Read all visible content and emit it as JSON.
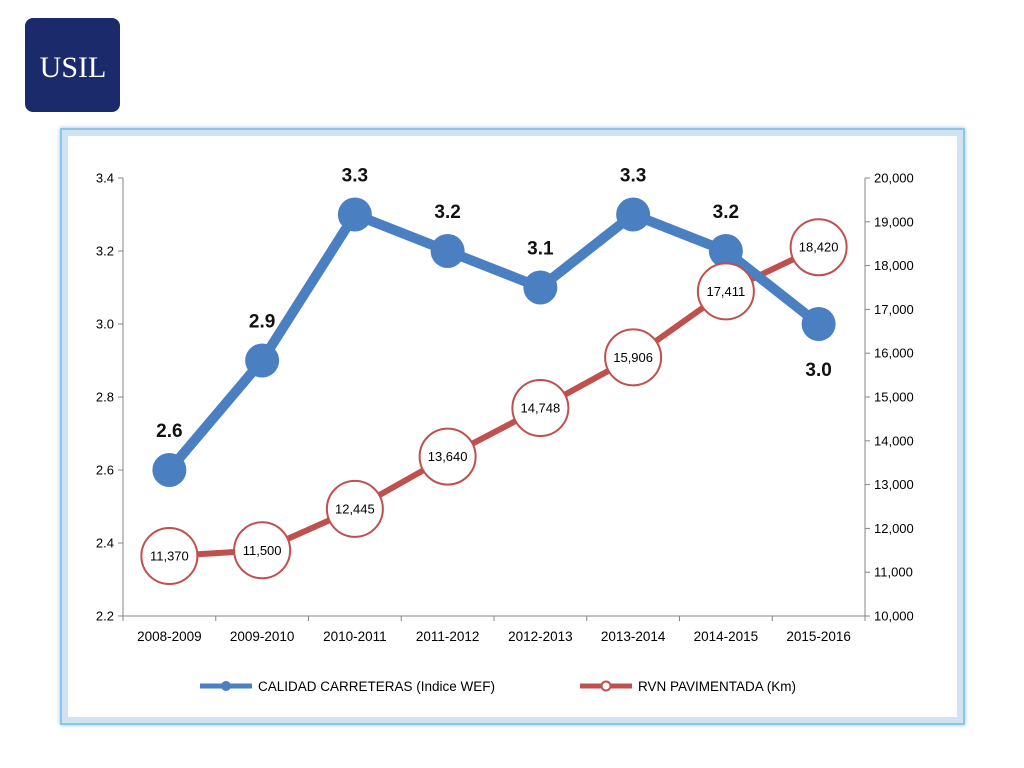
{
  "logo": {
    "text": "USIL"
  },
  "chart_data": {
    "type": "line",
    "categories": [
      "2008-2009",
      "2009-2010",
      "2010-2011",
      "2011-2012",
      "2012-2013",
      "2013-2014",
      "2014-2015",
      "2015-2016"
    ],
    "series": [
      {
        "name": "CALIDAD CARRETERAS (Indice WEF)",
        "axis": "left",
        "color": "#4a7fc1",
        "values": [
          2.6,
          2.9,
          3.3,
          3.2,
          3.1,
          3.3,
          3.2,
          3.0
        ],
        "labels": [
          "2.6",
          "2.9",
          "3.3",
          "3.2",
          "3.1",
          "3.3",
          "3.2",
          "3.0"
        ]
      },
      {
        "name": "RVN PAVIMENTADA (Km)",
        "axis": "right",
        "color": "#c0504d",
        "values": [
          11370,
          11500,
          12445,
          13640,
          14748,
          15906,
          17411,
          18420
        ],
        "labels": [
          "11,370",
          "11,500",
          "12,445",
          "13,640",
          "14,748",
          "15,906",
          "17,411",
          "18,420"
        ]
      }
    ],
    "y_left": {
      "ylim": [
        2.2,
        3.4
      ],
      "ticks": [
        "2.2",
        "2.4",
        "2.6",
        "2.8",
        "3.0",
        "3.2",
        "3.4"
      ]
    },
    "y_right": {
      "ylim": [
        10000,
        20000
      ],
      "ticks": [
        "10,000",
        "11,000",
        "12,000",
        "13,000",
        "14,000",
        "15,000",
        "16,000",
        "17,000",
        "18,000",
        "19,000",
        "20,000"
      ]
    },
    "grid": false,
    "legend_position": "bottom"
  }
}
